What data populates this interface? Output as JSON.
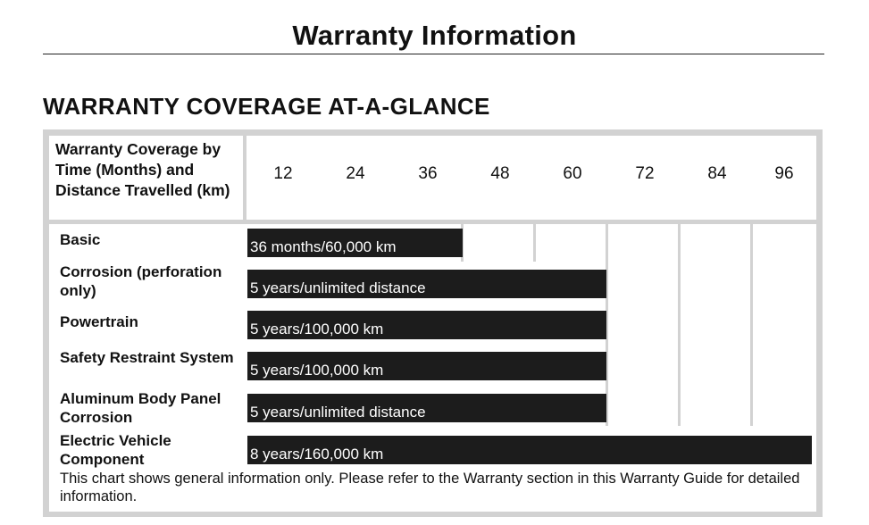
{
  "page_title": "Warranty Information",
  "section_heading": "WARRANTY COVERAGE AT-A-GLANCE",
  "table": {
    "header_label": "Warranty Coverage by Time (Months) and Distance Travelled (km)",
    "time_ticks": [
      "12",
      "24",
      "36",
      "48",
      "60",
      "72",
      "84",
      "96"
    ],
    "rows": [
      {
        "label": "Basic",
        "coverage": "36 months/60,000 km",
        "months": 36
      },
      {
        "label": "Corrosion (perforation only)",
        "coverage": "5 years/unlimited distance",
        "months": 60
      },
      {
        "label": "Powertrain",
        "coverage": "5 years/100,000 km",
        "months": 60
      },
      {
        "label": "Safety Restraint System",
        "coverage": "5 years/100,000 km",
        "months": 60
      },
      {
        "label": "Aluminum Body Panel Corrosion",
        "coverage": "5 years/unlimited distance",
        "months": 60
      },
      {
        "label": "Electric Vehicle Component",
        "coverage": "8 years/160,000 km",
        "months": 96
      }
    ],
    "note": "This chart shows general information only. Please refer to the Warranty section in this Warranty Guide for detailed information."
  },
  "colors": {
    "bar": "#1c1c1c",
    "frame": "#d2d2d2"
  }
}
